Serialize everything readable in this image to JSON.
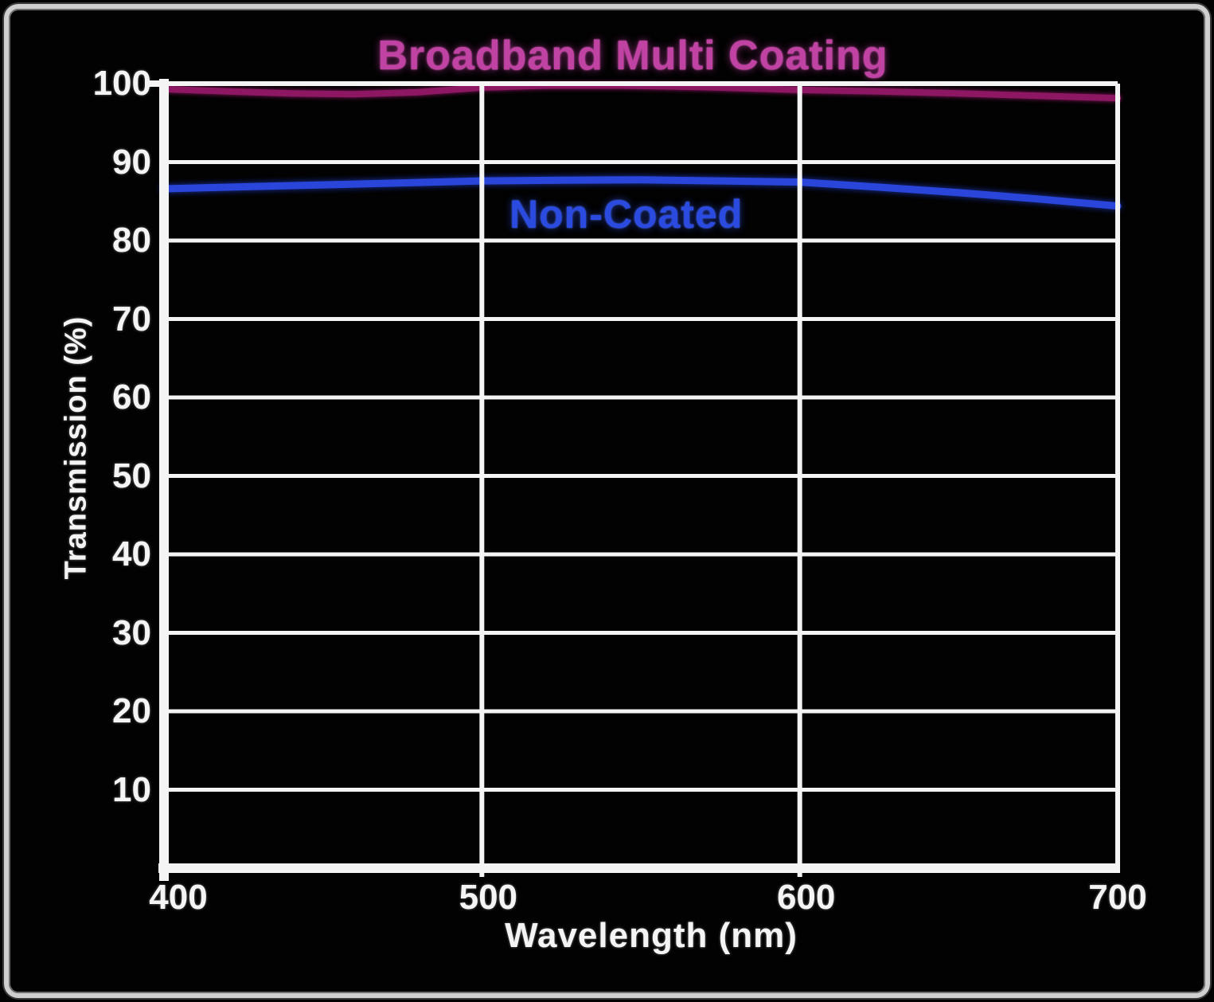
{
  "chart_data": {
    "type": "line",
    "title": "Broadband Multi Coating",
    "title_color": "#c043a3",
    "xlabel": "Wavelength (nm)",
    "ylabel": "Transmission (%)",
    "xlim": [
      400,
      700
    ],
    "ylim": [
      0,
      100
    ],
    "x_ticks": [
      400,
      500,
      600,
      700
    ],
    "y_ticks": [
      100,
      90,
      80,
      70,
      60,
      50,
      40,
      30,
      20,
      10
    ],
    "grid": "on",
    "axis_color": "#f4f4f4",
    "background_color": "#020202",
    "frame_border_color": "#cfcfcf",
    "legend_position": "inline-labels",
    "series": [
      {
        "name": "Broadband Multi Coating",
        "color": "#8e1763",
        "label_color": "#c043a3",
        "x": [
          400,
          420,
          440,
          460,
          480,
          500,
          520,
          545,
          570,
          600,
          625,
          650,
          675,
          700
        ],
        "values": [
          99.3,
          99.0,
          98.75,
          98.65,
          98.9,
          99.5,
          99.75,
          99.75,
          99.55,
          99.2,
          99.0,
          98.75,
          98.45,
          98.15
        ]
      },
      {
        "name": "Non-Coated",
        "color": "#2a46da",
        "label_color": "#2b4adf",
        "x": [
          400,
          425,
          450,
          475,
          500,
          525,
          550,
          575,
          600,
          625,
          650,
          675,
          700
        ],
        "values": [
          86.6,
          86.85,
          87.1,
          87.35,
          87.6,
          87.7,
          87.75,
          87.6,
          87.45,
          86.8,
          86.1,
          85.3,
          84.4
        ]
      }
    ]
  }
}
